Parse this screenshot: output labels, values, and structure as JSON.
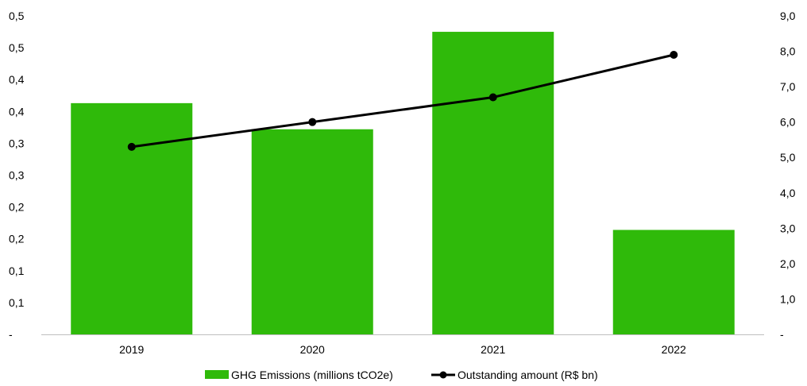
{
  "colors": {
    "bar": "#2fba0a",
    "line": "#000000",
    "axis": "#bfbfbf"
  },
  "chart_data": {
    "type": "bar+line",
    "title": "",
    "categories": [
      "2019",
      "2020",
      "2021",
      "2022"
    ],
    "series": [
      {
        "name": "GHG Emissions (millions tCO2e)",
        "type": "bar",
        "axis": "left",
        "values": [
          0.363,
          0.322,
          0.475,
          0.164
        ]
      },
      {
        "name": "Outstanding amount (R$ bn)",
        "type": "line",
        "axis": "right",
        "values": [
          5.3,
          6.0,
          6.7,
          7.9
        ]
      }
    ],
    "y_left": {
      "ylim": [
        0,
        0.5
      ],
      "ticks": [
        0,
        0.05,
        0.1,
        0.15,
        0.2,
        0.25,
        0.3,
        0.35,
        0.4,
        0.45,
        0.5
      ],
      "tick_labels": [
        "-",
        "0,1",
        "0,1",
        "0,2",
        "0,2",
        "0,3",
        "0,3",
        "0,4",
        "0,4",
        "0,5",
        "0,5"
      ]
    },
    "y_right": {
      "ylim": [
        0,
        9
      ],
      "ticks": [
        0,
        1,
        2,
        3,
        4,
        5,
        6,
        7,
        8,
        9
      ],
      "tick_labels": [
        "-",
        "1,0",
        "2,0",
        "3,0",
        "4,0",
        "5,0",
        "6,0",
        "7,0",
        "8,0",
        "9,0"
      ]
    },
    "grid": false,
    "legend": "bottom-center"
  }
}
